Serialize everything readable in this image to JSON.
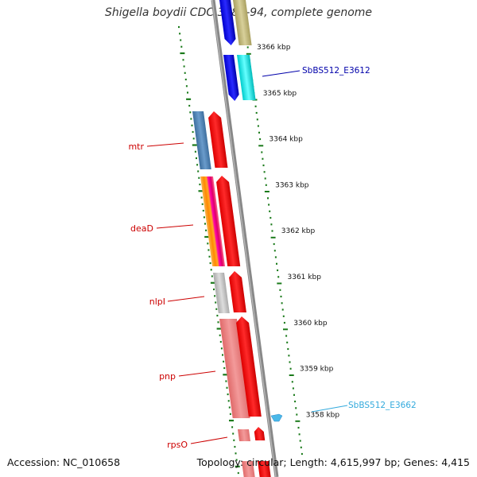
{
  "title": "Shigella boydii CDC 3083-94, complete genome",
  "footer": {
    "accession": "Accession: NC_010658",
    "summary": "Topology: circular; Length: 4,615,997 bp; Genes: 4,415"
  },
  "scale_labels": [
    "3366 kbp",
    "3365 kbp",
    "3364 kbp",
    "3363 kbp",
    "3362 kbp",
    "3361 kbp",
    "3360 kbp",
    "3359 kbp",
    "3358 kbp"
  ],
  "genes": [
    {
      "name": "mtr",
      "color": "#cc0000"
    },
    {
      "name": "deaD",
      "color": "#cc0000"
    },
    {
      "name": "nlpI",
      "color": "#cc0000"
    },
    {
      "name": "pnp",
      "color": "#cc0000"
    },
    {
      "name": "rpsO",
      "color": "#cc0000"
    }
  ],
  "features": [
    {
      "name": "SbBS512_E3612",
      "color": "#0000aa"
    },
    {
      "name": "SbBS512_E3662",
      "color": "#33aadd"
    }
  ],
  "colors": {
    "backbone": "#888888",
    "tick": "#1a7a1a",
    "forward_cds": "#ff0000",
    "reverse_cds_pink": "#f08080",
    "blue_cds": "#0000ee",
    "cyan_cds": "#00dddd",
    "tan_cds": "#bdb37a",
    "steel_blue_cds": "#4f81b5",
    "gray_cds": "#bbbbbb"
  }
}
